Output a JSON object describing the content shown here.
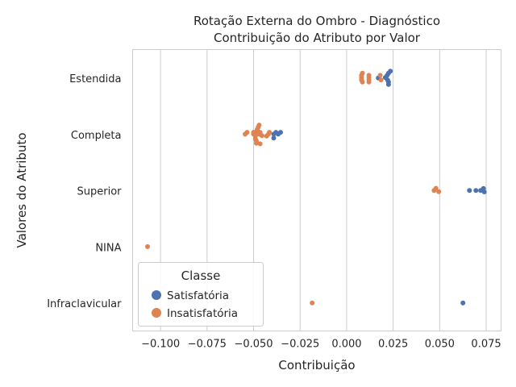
{
  "chart_data": {
    "type": "scatter",
    "title_lines": [
      "Rotação Externa do Ombro - Diagnóstico",
      "Contribuição do Atributo por Valor"
    ],
    "xlabel": "Contribuição",
    "ylabel": "Valores do Atributo",
    "xlim": [
      -0.115,
      0.083
    ],
    "xticks": [
      -0.1,
      -0.075,
      -0.05,
      -0.025,
      0.0,
      0.025,
      0.05,
      0.075
    ],
    "xtick_labels": [
      "−0.100",
      "−0.075",
      "−0.050",
      "−0.025",
      "0.000",
      "0.025",
      "0.050",
      "0.075"
    ],
    "categories": [
      "Estendida",
      "Completa",
      "Superior",
      "NINA",
      "Infraclavicular"
    ],
    "grid": "vertical",
    "legend": {
      "title": "Classe",
      "placement": "lower-left"
    },
    "series": [
      {
        "name": "Satisfatória",
        "color": "#4c72b0",
        "points": [
          {
            "category": "Estendida",
            "x": 0.0235,
            "y": 0.29
          },
          {
            "category": "Estendida",
            "x": 0.0225,
            "y": 0.21
          },
          {
            "category": "Estendida",
            "x": 0.0218,
            "y": 0.12
          },
          {
            "category": "Estendida",
            "x": 0.0208,
            "y": 0.03
          },
          {
            "category": "Estendida",
            "x": 0.017,
            "y": 0.01
          },
          {
            "category": "Estendida",
            "x": 0.022,
            "y": -0.07
          },
          {
            "category": "Estendida",
            "x": 0.0225,
            "y": -0.16
          },
          {
            "category": "Estendida",
            "x": 0.0225,
            "y": -0.26
          },
          {
            "category": "Completa",
            "x": -0.038,
            "y": 0.09
          },
          {
            "category": "Completa",
            "x": -0.0355,
            "y": 0.09
          },
          {
            "category": "Completa",
            "x": -0.0392,
            "y": 0.01
          },
          {
            "category": "Completa",
            "x": -0.0368,
            "y": 0.01
          },
          {
            "category": "Completa",
            "x": -0.0392,
            "y": -0.15
          },
          {
            "category": "Superior",
            "x": 0.0735,
            "y": 0.09
          },
          {
            "category": "Superior",
            "x": 0.066,
            "y": 0.01
          },
          {
            "category": "Superior",
            "x": 0.0695,
            "y": 0.01
          },
          {
            "category": "Superior",
            "x": 0.072,
            "y": 0.01
          },
          {
            "category": "Superior",
            "x": 0.074,
            "y": -0.05
          },
          {
            "category": "Infraclavicular",
            "x": 0.0625,
            "y": 0.01
          }
        ]
      },
      {
        "name": "Insatisfatória",
        "color": "#dd8452",
        "points": [
          {
            "category": "Estendida",
            "x": 0.0085,
            "y": 0.21
          },
          {
            "category": "Estendida",
            "x": 0.008,
            "y": 0.12
          },
          {
            "category": "Estendida",
            "x": 0.012,
            "y": 0.12
          },
          {
            "category": "Estendida",
            "x": 0.018,
            "y": 0.12
          },
          {
            "category": "Estendida",
            "x": 0.008,
            "y": 0.03
          },
          {
            "category": "Estendida",
            "x": 0.012,
            "y": 0.03
          },
          {
            "category": "Estendida",
            "x": 0.008,
            "y": -0.07
          },
          {
            "category": "Estendida",
            "x": 0.012,
            "y": -0.07
          },
          {
            "category": "Estendida",
            "x": 0.0185,
            "y": -0.07
          },
          {
            "category": "Estendida",
            "x": 0.0085,
            "y": -0.16
          },
          {
            "category": "Estendida",
            "x": 0.012,
            "y": -0.16
          },
          {
            "category": "Completa",
            "x": -0.047,
            "y": 0.39
          },
          {
            "category": "Completa",
            "x": -0.0475,
            "y": 0.3
          },
          {
            "category": "Completa",
            "x": -0.048,
            "y": 0.21
          },
          {
            "category": "Completa",
            "x": -0.0485,
            "y": 0.12
          },
          {
            "category": "Completa",
            "x": -0.0535,
            "y": 0.09
          },
          {
            "category": "Completa",
            "x": -0.05,
            "y": 0.09
          },
          {
            "category": "Completa",
            "x": -0.0465,
            "y": 0.09
          },
          {
            "category": "Completa",
            "x": -0.0415,
            "y": 0.09
          },
          {
            "category": "Completa",
            "x": -0.0545,
            "y": 0.01
          },
          {
            "category": "Completa",
            "x": -0.05,
            "y": 0.01
          },
          {
            "category": "Completa",
            "x": -0.047,
            "y": 0.01
          },
          {
            "category": "Completa",
            "x": -0.042,
            "y": 0.01
          },
          {
            "category": "Completa",
            "x": -0.049,
            "y": -0.07
          },
          {
            "category": "Completa",
            "x": -0.0455,
            "y": -0.05
          },
          {
            "category": "Completa",
            "x": -0.043,
            "y": -0.07
          },
          {
            "category": "Completa",
            "x": -0.049,
            "y": -0.19
          },
          {
            "category": "Completa",
            "x": -0.0485,
            "y": -0.27
          },
          {
            "category": "Completa",
            "x": -0.0485,
            "y": -0.36
          },
          {
            "category": "Completa",
            "x": -0.0465,
            "y": -0.39
          },
          {
            "category": "Superior",
            "x": 0.048,
            "y": 0.1
          },
          {
            "category": "Superior",
            "x": 0.047,
            "y": 0.01
          },
          {
            "category": "Superior",
            "x": 0.0495,
            "y": -0.04
          },
          {
            "category": "NINA",
            "x": -0.107,
            "y": 0.01
          },
          {
            "category": "Infraclavicular",
            "x": -0.0185,
            "y": 0.01
          }
        ]
      }
    ]
  }
}
